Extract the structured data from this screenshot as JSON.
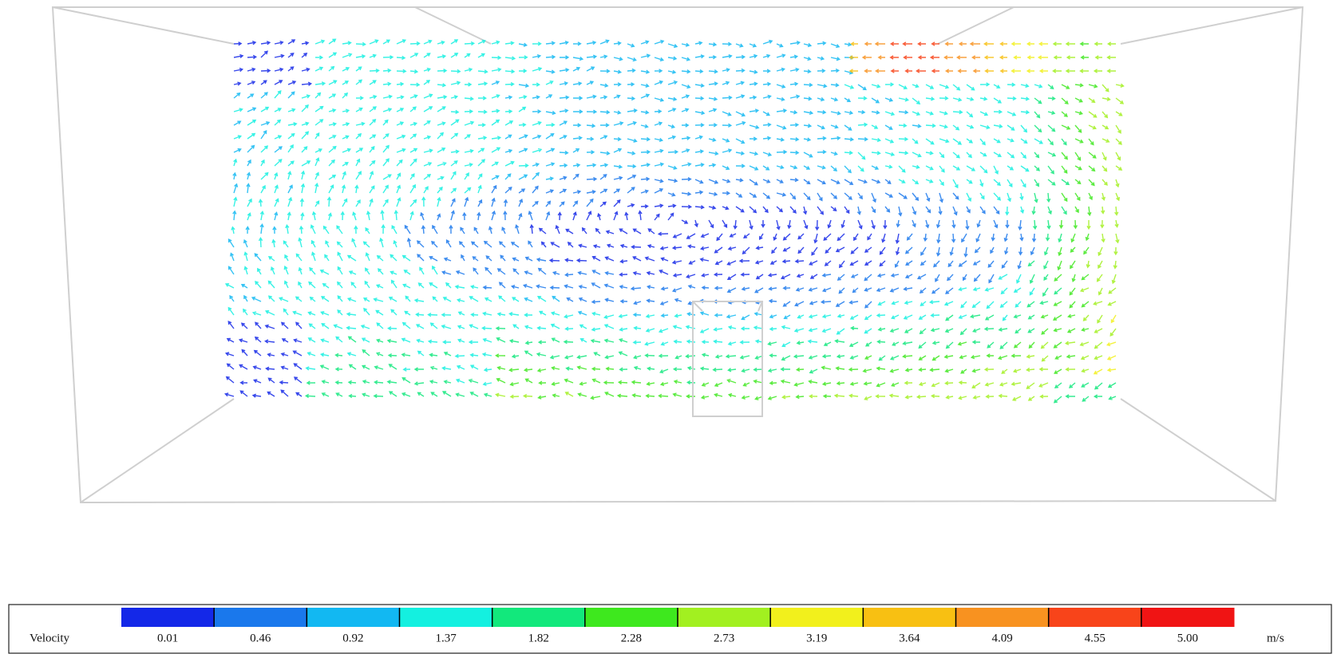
{
  "legend": {
    "label": "Velocity",
    "unit": "m/s",
    "ticks": [
      "0.01",
      "0.46",
      "0.92",
      "1.37",
      "1.82",
      "2.28",
      "2.73",
      "3.19",
      "3.64",
      "4.09",
      "4.55",
      "5.00"
    ],
    "colors": [
      "#1428e8",
      "#1a78ec",
      "#12b8f2",
      "#14f0e0",
      "#12e87c",
      "#3ee81e",
      "#a2f020",
      "#f2f01c",
      "#f8c012",
      "#f89220",
      "#f8441a",
      "#f01414"
    ]
  }
}
